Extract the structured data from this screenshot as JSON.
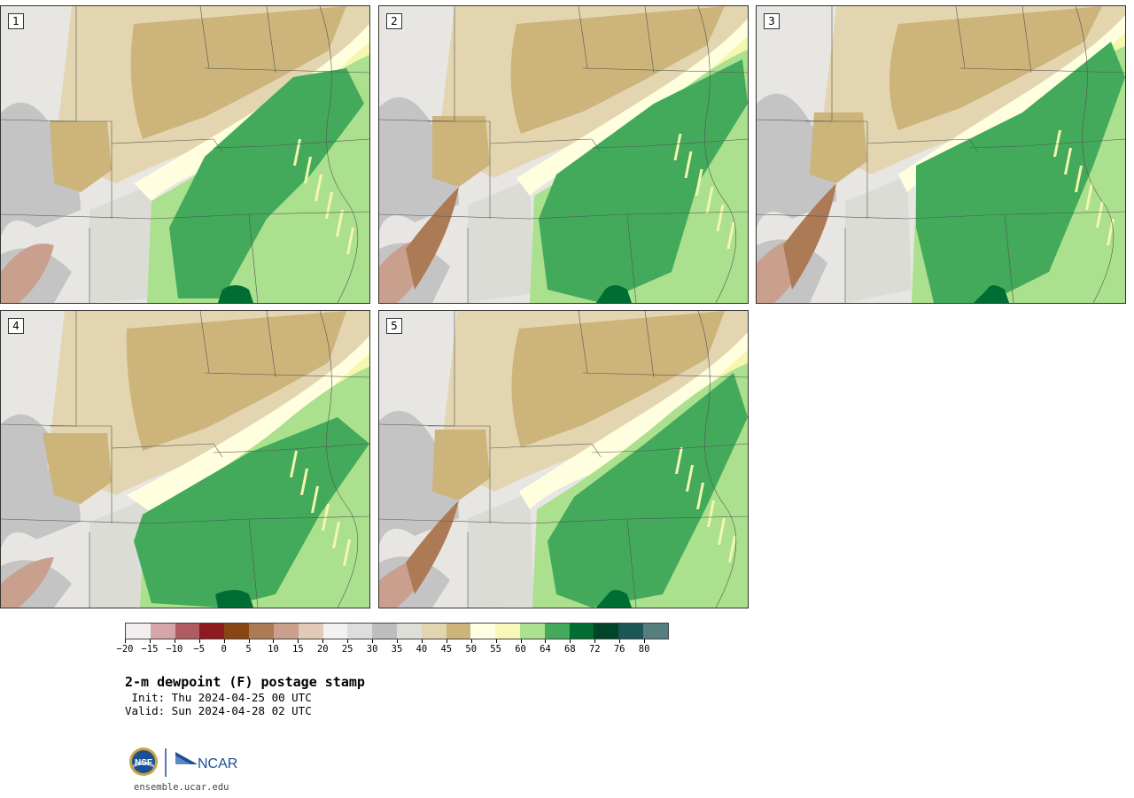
{
  "panels": [
    {
      "id": "1",
      "label": "1"
    },
    {
      "id": "2",
      "label": "2"
    },
    {
      "id": "3",
      "label": "3"
    },
    {
      "id": "4",
      "label": "4"
    },
    {
      "id": "5",
      "label": "5"
    }
  ],
  "colorbar": {
    "colors": [
      "#f2eeee",
      "#d6a5ab",
      "#b05c63",
      "#8c1a1e",
      "#8a4514",
      "#ad7a56",
      "#c9a08d",
      "#e3c9b8",
      "#f2f2f2",
      "#dedede",
      "#bebebe",
      "#dedfd6",
      "#e3d5b0",
      "#ccb47a",
      "#ffffe4",
      "#f8f8b8",
      "#abe08e",
      "#43aa5b",
      "#006d32",
      "#00442a",
      "#1c5656",
      "#577e7e"
    ],
    "tick_labels": [
      "−20",
      "−15",
      "−10",
      "−5",
      "0",
      "5",
      "10",
      "15",
      "20",
      "25",
      "30",
      "35",
      "40",
      "45",
      "50",
      "55",
      "60",
      "64",
      "68",
      "72",
      "76",
      "80"
    ]
  },
  "title": "2-m dewpoint (F) postage stamp",
  "init": " Init: Thu 2024-04-25 00 UTC",
  "valid": "Valid: Sun 2024-04-28 02 UTC",
  "logos": {
    "nsf": "NSF",
    "ncar": "NCAR"
  },
  "url": "ensemble.ucar.edu"
}
